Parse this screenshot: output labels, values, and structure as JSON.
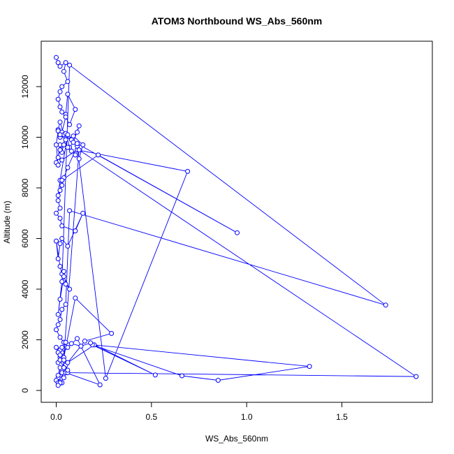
{
  "chart_data": {
    "type": "line",
    "title": "ATOM3 Northbound WS_Abs_560nm",
    "xlabel": "WS_Abs_560nm",
    "ylabel": "Altitude (m)",
    "xlim": [
      0,
      1.95
    ],
    "ylim": [
      0,
      13300
    ],
    "x_ticks": [
      0,
      0.5,
      1,
      1.5
    ],
    "x_tick_labels": [
      "0.0",
      "0.5",
      "1.0",
      "1.5"
    ],
    "y_ticks": [
      0,
      2000,
      4000,
      6000,
      8000,
      10000,
      12000
    ],
    "y_tick_labels": [
      "0",
      "2000",
      "4000",
      "6000",
      "8000",
      "10000",
      "12000"
    ],
    "grid": false,
    "legend": "none",
    "color": "#0000ff",
    "marker": "open-circle",
    "series": [
      {
        "x": [
          0.0,
          0.01,
          0.02,
          0.05,
          0.04,
          0.06,
          0.03,
          0.02,
          0.01,
          0.02,
          0.03,
          0.05,
          0.06,
          0.1,
          0.07,
          0.05,
          0.03,
          0.02,
          0.01,
          0.02,
          0.04,
          0.08,
          0.11,
          0.12,
          0.09,
          0.07,
          0.05,
          0.03,
          0.02,
          0.01,
          0.0,
          0.02,
          0.04,
          0.06,
          0.08,
          0.1,
          0.12,
          0.14,
          0.09,
          0.05,
          0.02,
          0.01,
          0.0,
          0.01,
          0.03,
          0.11,
          0.69,
          0.26,
          0.11,
          0.06,
          0.04,
          0.03,
          0.01,
          0.02,
          0.06,
          0.11,
          0.95,
          0.22,
          0.03,
          0.02,
          0.01,
          0.02,
          0.0,
          0.02,
          0.03,
          0.1,
          0.14,
          0.06,
          0.03,
          0.02,
          0.01,
          0.0,
          0.02,
          0.03,
          0.04,
          0.05,
          0.07,
          0.04,
          0.02,
          0.01,
          0.03,
          0.07,
          1.73,
          0.07,
          0.05,
          0.03,
          0.02,
          0.01,
          0.0,
          0.02,
          0.04,
          0.06,
          0.03,
          0.02,
          0.01,
          0.02,
          0.04,
          0.1,
          0.29,
          0.15,
          0.05,
          0.03,
          0.02,
          0.01,
          0.0,
          0.01,
          0.03,
          0.06,
          0.2,
          1.33,
          0.85,
          0.66,
          0.19,
          0.52,
          0.18,
          0.13,
          0.08,
          0.05,
          0.03,
          0.02,
          0.11,
          0.23,
          0.05,
          0.02,
          0.01,
          0.03,
          0.12,
          1.89,
          0.06,
          0.04,
          0.02,
          0.01,
          0.0,
          0.02,
          0.04,
          0.06,
          0.04,
          0.02,
          0.01
        ],
        "y": [
          13150,
          12950,
          12800,
          12950,
          12600,
          12200,
          12000,
          11800,
          11500,
          11200,
          11000,
          10900,
          11700,
          11100,
          10500,
          10800,
          10200,
          10000,
          10300,
          10600,
          10100,
          9900,
          10200,
          10450,
          9800,
          9600,
          10150,
          9400,
          9700,
          9200,
          9000,
          9500,
          9700,
          9600,
          9450,
          9300,
          9150,
          9700,
          10050,
          9900,
          10100,
          10250,
          9700,
          8900,
          9100,
          9500,
          8650,
          480,
          9650,
          8800,
          8400,
          8100,
          7700,
          8300,
          10100,
          9750,
          6230,
          9300,
          8300,
          7900,
          7500,
          7200,
          7000,
          6800,
          6500,
          6300,
          7000,
          5700,
          6000,
          5800,
          5200,
          5900,
          4900,
          4600,
          4700,
          4200,
          4000,
          4500,
          3600,
          3000,
          4300,
          12850,
          3370,
          7100,
          3400,
          3200,
          2800,
          2600,
          2400,
          2100,
          1900,
          1700,
          1500,
          1300,
          1100,
          1600,
          1300,
          3650,
          2250,
          1950,
          1000,
          800,
          600,
          500,
          400,
          300,
          700,
          1100,
          1800,
          950,
          400,
          580,
          1800,
          610,
          1880,
          1750,
          1850,
          1900,
          1700,
          1400,
          2050,
          220,
          700,
          900,
          600,
          300,
          9500,
          550,
          700,
          900,
          1200,
          1500,
          1700,
          1400,
          1200,
          800,
          500,
          300,
          200
        ]
      }
    ]
  }
}
